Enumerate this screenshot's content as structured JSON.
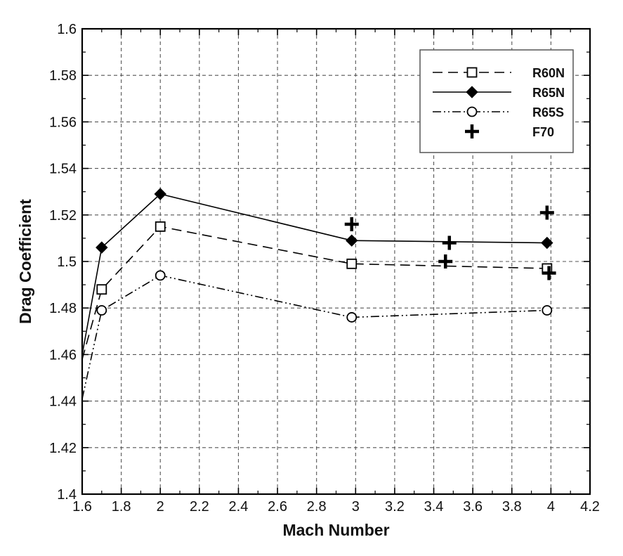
{
  "chart_data": {
    "type": "line",
    "xlabel": "Mach Number",
    "ylabel": "Drag Coefficient",
    "xlim": [
      1.6,
      4.2
    ],
    "ylim": [
      1.4,
      1.6
    ],
    "x_ticks": [
      "1.6",
      "1.8",
      "2",
      "2.2",
      "2.4",
      "2.6",
      "2.8",
      "3",
      "3.2",
      "3.4",
      "3.6",
      "3.8",
      "4",
      "4.2"
    ],
    "y_ticks": [
      "1.4",
      "1.42",
      "1.44",
      "1.46",
      "1.48",
      "1.5",
      "1.52",
      "1.54",
      "1.56",
      "1.58",
      "1.6"
    ],
    "grid": true,
    "legend_position": "top-right",
    "series": [
      {
        "name": "R60N",
        "line_style": "dashed",
        "marker": "open-square",
        "x": [
          1.6,
          1.7,
          2.0,
          2.98,
          3.98
        ],
        "y": [
          1.458,
          1.488,
          1.515,
          1.499,
          1.497
        ]
      },
      {
        "name": "R65N",
        "line_style": "solid",
        "marker": "filled-diamond",
        "x": [
          1.6,
          1.7,
          2.0,
          2.98,
          3.98
        ],
        "y": [
          1.46,
          1.506,
          1.529,
          1.509,
          1.508
        ]
      },
      {
        "name": "R65S",
        "line_style": "dash-dot-dot",
        "marker": "open-circle",
        "x": [
          1.6,
          1.7,
          2.0,
          2.98,
          3.98
        ],
        "y": [
          1.441,
          1.479,
          1.494,
          1.476,
          1.479
        ]
      },
      {
        "name": "F70",
        "line_style": "none",
        "marker": "plus",
        "x": [
          2.98,
          3.46,
          3.48,
          3.98,
          3.99
        ],
        "y": [
          1.516,
          1.5,
          1.508,
          1.521,
          1.495
        ]
      }
    ]
  }
}
